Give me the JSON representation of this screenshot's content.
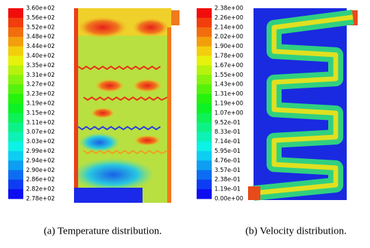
{
  "panels": [
    {
      "caption": "(a) Temperature distribution.",
      "colorbar_labels": [
        "3.60e+02",
        "3.56e+02",
        "3.52e+02",
        "3.48e+02",
        "3.44e+02",
        "3.40e+02",
        "3.35e+02",
        "3.31e+02",
        "3.27e+02",
        "3.23e+02",
        "3.19e+02",
        "3.15e+02",
        "3.11e+02",
        "3.07e+02",
        "3.03e+02",
        "2.99e+02",
        "2.94e+02",
        "2.90e+02",
        "2.86e+02",
        "2.82e+02",
        "2.78e+02"
      ]
    },
    {
      "caption": "(b) Velocity distribution.",
      "colorbar_labels": [
        "2.38e+00",
        "2.26e+00",
        "2.14e+00",
        "2.02e+00",
        "1.90e+00",
        "1.78e+00",
        "1.67e+00",
        "1.55e+00",
        "1.43e+00",
        "1.31e+00",
        "1.19e+00",
        "1.07e+00",
        "9.52e-01",
        "8.33e-01",
        "7.14e-01",
        "5.95e-01",
        "4.76e-01",
        "3.57e-01",
        "2.38e-01",
        "1.19e-01",
        "0.00e+00"
      ]
    }
  ]
}
